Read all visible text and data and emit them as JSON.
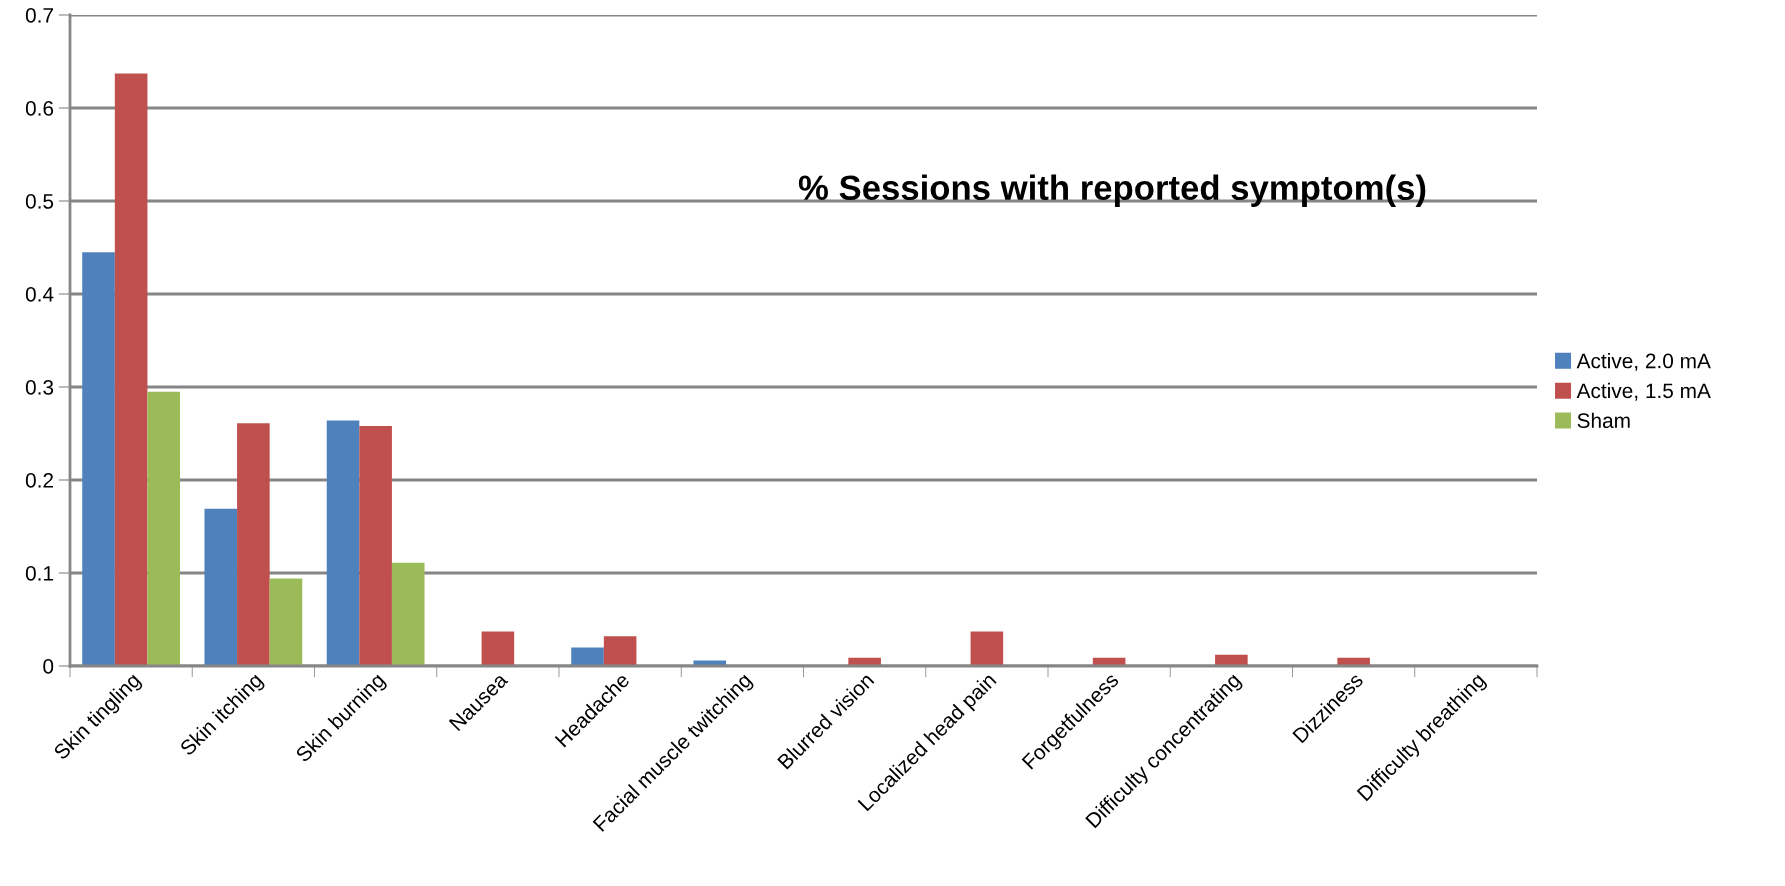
{
  "chart_data": {
    "type": "bar",
    "title": "% Sessions with reported symptom(s)",
    "categories": [
      "Skin tingling",
      "Skin itching",
      "Skin burning",
      "Nausea",
      "Headache",
      "Facial muscle twitching",
      "Blurred vision",
      "Localized head pain",
      "Forgetfulness",
      "Difficulty concentrating",
      "Dizziness",
      "Difficulty breathing"
    ],
    "series": [
      {
        "name": "Active, 2.0 mA",
        "color": "#4f81bd",
        "values": [
          0.445,
          0.169,
          0.264,
          null,
          0.02,
          0.006,
          null,
          null,
          null,
          null,
          null,
          null
        ]
      },
      {
        "name": "Active, 1.5 mA",
        "color": "#c0504d",
        "values": [
          0.637,
          0.261,
          0.258,
          0.037,
          0.032,
          null,
          0.009,
          0.037,
          0.009,
          0.012,
          0.009,
          null
        ]
      },
      {
        "name": "Sham",
        "color": "#9bbb59",
        "values": [
          0.295,
          0.094,
          0.111,
          null,
          null,
          null,
          null,
          null,
          null,
          null,
          null,
          null
        ]
      }
    ],
    "ylim": [
      0,
      0.7
    ],
    "yticks": [
      0,
      0.1,
      0.2,
      0.3,
      0.4,
      0.5,
      0.6,
      0.7
    ],
    "grid": "y",
    "legend": "right"
  }
}
